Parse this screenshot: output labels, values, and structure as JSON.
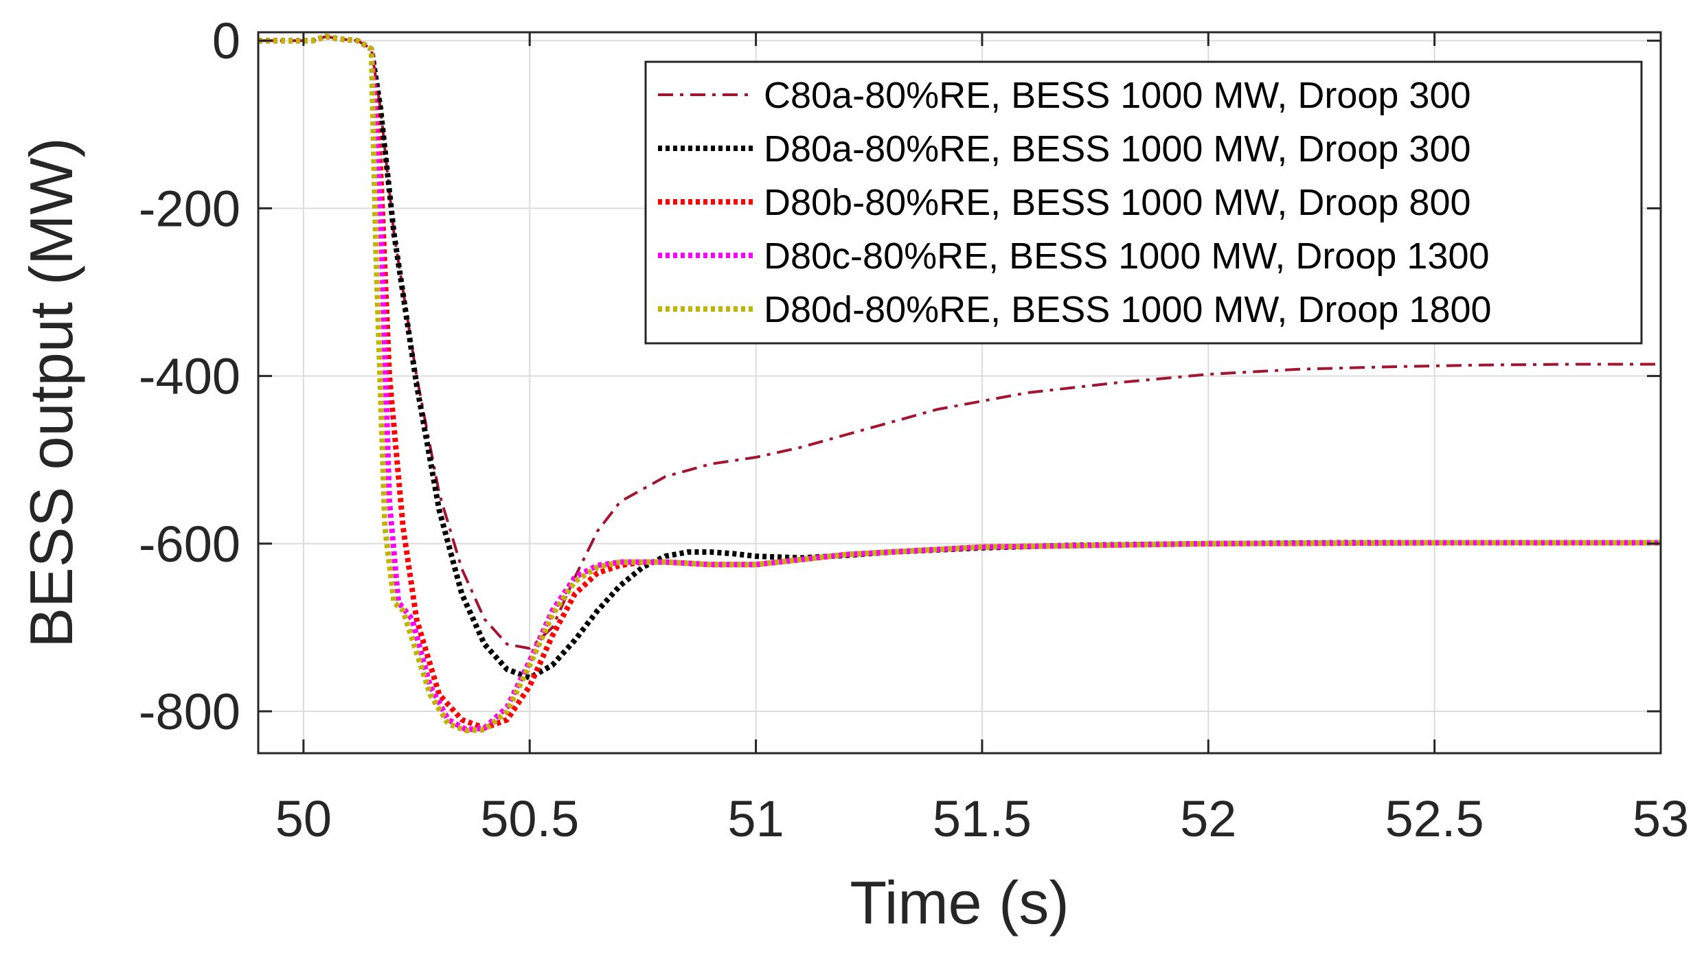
{
  "chart_data": {
    "type": "line",
    "xlabel": "Time (s)",
    "ylabel": "BESS output (MW)",
    "xlim": [
      49.9,
      53
    ],
    "ylim": [
      -850,
      10
    ],
    "x_ticks": [
      50,
      50.5,
      51,
      51.5,
      52,
      52.5,
      53
    ],
    "x_tick_labels": [
      "50",
      "50.5",
      "51",
      "51.5",
      "52",
      "52.5",
      "53"
    ],
    "y_ticks": [
      0,
      -200,
      -400,
      -600,
      -800
    ],
    "y_tick_labels": [
      "0",
      "-200",
      "-400",
      "-600",
      "-800"
    ],
    "grid": true,
    "legend_position": "top-right",
    "series": [
      {
        "name": "C80a-80%RE, BESS 1000 MW, Droop 300",
        "color": "#a2142f",
        "style": "dashdot",
        "x": [
          49.9,
          50.02,
          50.05,
          50.08,
          50.12,
          50.15,
          50.17,
          50.2,
          50.25,
          50.3,
          50.35,
          50.4,
          50.45,
          50.5,
          50.55,
          50.6,
          50.65,
          50.7,
          50.8,
          50.9,
          51.0,
          51.1,
          51.2,
          51.3,
          51.4,
          51.5,
          51.6,
          51.8,
          52.0,
          52.2,
          52.4,
          52.6,
          52.8,
          53.0
        ],
        "y": [
          0,
          0,
          5,
          2,
          0,
          -10,
          -80,
          -230,
          -400,
          -540,
          -630,
          -690,
          -720,
          -725,
          -700,
          -640,
          -585,
          -550,
          -520,
          -505,
          -497,
          -485,
          -470,
          -455,
          -440,
          -430,
          -420,
          -408,
          -398,
          -392,
          -389,
          -387,
          -386,
          -386
        ]
      },
      {
        "name": "D80a-80%RE, BESS 1000 MW, Droop 300",
        "color": "#000000",
        "style": "dotted",
        "x": [
          49.9,
          50.02,
          50.05,
          50.08,
          50.12,
          50.15,
          50.17,
          50.2,
          50.25,
          50.3,
          50.35,
          50.4,
          50.45,
          50.5,
          50.55,
          50.6,
          50.65,
          50.7,
          50.75,
          50.8,
          50.85,
          50.9,
          50.95,
          51.0,
          51.1,
          51.2,
          51.3,
          51.5,
          51.7,
          52.0,
          52.3,
          52.6,
          53.0
        ],
        "y": [
          0,
          0,
          5,
          2,
          0,
          -10,
          -80,
          -230,
          -410,
          -560,
          -660,
          -720,
          -750,
          -760,
          -745,
          -715,
          -680,
          -650,
          -628,
          -615,
          -610,
          -610,
          -612,
          -615,
          -617,
          -614,
          -610,
          -605,
          -602,
          -600,
          -599,
          -599,
          -599
        ]
      },
      {
        "name": "D80b-80%RE, BESS 1000 MW, Droop 800",
        "color": "#ff0000",
        "style": "dotted",
        "x": [
          49.9,
          50.02,
          50.05,
          50.08,
          50.12,
          50.15,
          50.17,
          50.19,
          50.22,
          50.25,
          50.3,
          50.35,
          50.4,
          50.45,
          50.5,
          50.55,
          50.6,
          50.65,
          50.7,
          50.75,
          50.8,
          50.9,
          51.0,
          51.2,
          51.5,
          52.0,
          52.5,
          53.0
        ],
        "y": [
          0,
          0,
          5,
          2,
          0,
          -10,
          -150,
          -400,
          -580,
          -690,
          -780,
          -810,
          -820,
          -810,
          -770,
          -710,
          -660,
          -635,
          -626,
          -622,
          -622,
          -625,
          -625,
          -613,
          -604,
          -600,
          -599,
          -599
        ]
      },
      {
        "name": "D80c-80%RE, BESS 1000 MW, Droop 1300",
        "color": "#ff00ff",
        "style": "dotted",
        "x": [
          49.9,
          50.02,
          50.05,
          50.08,
          50.12,
          50.15,
          50.17,
          50.19,
          50.21,
          50.24,
          50.28,
          50.32,
          50.36,
          50.4,
          50.45,
          50.5,
          50.55,
          50.6,
          50.65,
          50.7,
          50.8,
          50.9,
          51.0,
          51.2,
          51.5,
          52.0,
          52.5,
          53.0
        ],
        "y": [
          0,
          0,
          5,
          2,
          0,
          -10,
          -200,
          -550,
          -670,
          -690,
          -770,
          -810,
          -822,
          -820,
          -795,
          -740,
          -680,
          -640,
          -626,
          -622,
          -622,
          -625,
          -625,
          -613,
          -604,
          -600,
          -599,
          -599
        ]
      },
      {
        "name": "D80d-80%RE, BESS 1000 MW, Droop 1800",
        "color": "#c0b400",
        "style": "dotted",
        "x": [
          49.9,
          50.02,
          50.05,
          50.08,
          50.12,
          50.15,
          50.16,
          50.18,
          50.2,
          50.22,
          50.25,
          50.28,
          50.32,
          50.36,
          50.4,
          50.45,
          50.5,
          50.55,
          50.6,
          50.65,
          50.7,
          50.8,
          50.9,
          51.0,
          51.2,
          51.5,
          52.0,
          52.5,
          53.0
        ],
        "y": [
          0,
          0,
          5,
          2,
          0,
          -10,
          -250,
          -580,
          -670,
          -680,
          -730,
          -780,
          -815,
          -823,
          -822,
          -800,
          -745,
          -685,
          -645,
          -628,
          -622,
          -622,
          -625,
          -625,
          -613,
          -604,
          -600,
          -599,
          -599
        ]
      }
    ]
  }
}
